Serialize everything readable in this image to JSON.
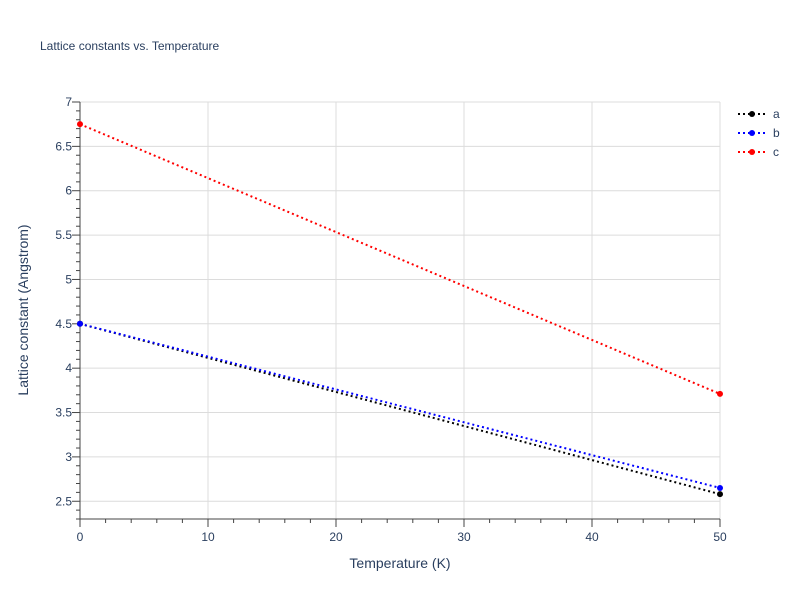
{
  "chart_data": {
    "type": "line",
    "title": "Lattice constants vs. Temperature",
    "xlabel": "Temperature (K)",
    "ylabel": "Lattice constant (Angstrom)",
    "xlim": [
      0,
      50
    ],
    "ylim": [
      2.3,
      7
    ],
    "x_ticks": [
      0,
      10,
      20,
      30,
      40,
      50
    ],
    "y_ticks": [
      2.5,
      3,
      3.5,
      4,
      4.5,
      5,
      5.5,
      6,
      6.5,
      7
    ],
    "x_tick_labels": [
      "0",
      "10",
      "20",
      "30",
      "40",
      "50"
    ],
    "y_tick_labels": [
      "2.5",
      "3",
      "3.5",
      "4",
      "4.5",
      "5",
      "5.5",
      "6",
      "6.5",
      "7"
    ],
    "grid": true,
    "legend_position": "top-right",
    "line_style": "dotted",
    "series": [
      {
        "name": "a",
        "color": "#000000",
        "x": [
          0,
          50
        ],
        "y": [
          4.5,
          2.58
        ]
      },
      {
        "name": "b",
        "color": "#0000ff",
        "x": [
          0,
          50
        ],
        "y": [
          4.5,
          2.65
        ]
      },
      {
        "name": "c",
        "color": "#ff0000",
        "x": [
          0,
          50
        ],
        "y": [
          6.75,
          3.71
        ]
      }
    ]
  }
}
